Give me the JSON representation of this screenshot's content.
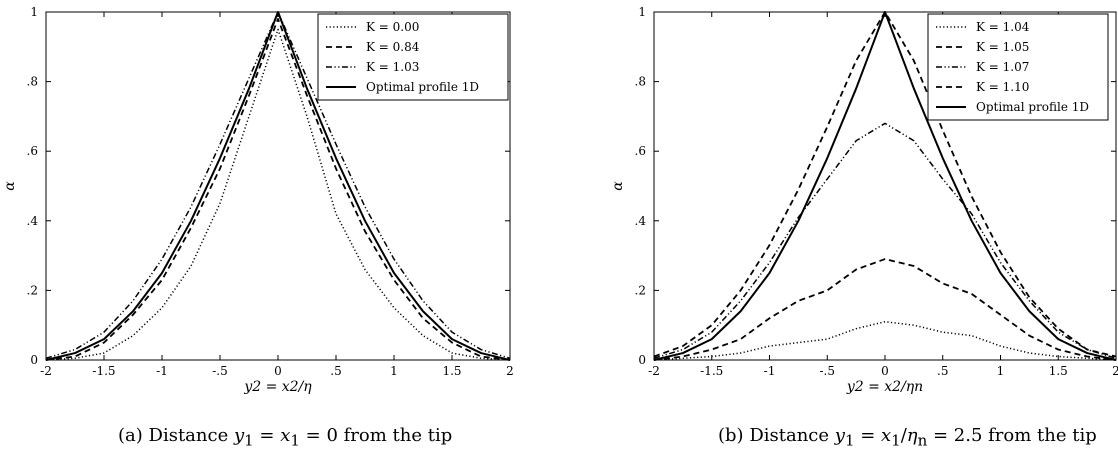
{
  "chart_data": [
    {
      "type": "line",
      "panel": "a",
      "caption_label": "(a)",
      "caption": "Distance y1 = x1 = 0 from the tip",
      "xlabel": "y2 = x2/η",
      "ylabel": "α",
      "xlim": [
        -2,
        2
      ],
      "ylim": [
        0,
        1
      ],
      "x_ticks": [
        -2,
        -1.5,
        -1,
        -0.5,
        0,
        0.5,
        1,
        1.5,
        2
      ],
      "x_tick_labels": [
        "-2",
        "-1.5",
        "-1",
        "-.5",
        "0",
        ".5",
        "1",
        "1.5",
        "2"
      ],
      "y_ticks": [
        0,
        0.2,
        0.4,
        0.6,
        0.8,
        1
      ],
      "y_tick_labels": [
        "0",
        ".2",
        ".4",
        ".6",
        ".8",
        "1"
      ],
      "legend_position": "top-right",
      "x": [
        -2,
        -1.75,
        -1.5,
        -1.25,
        -1,
        -0.75,
        -0.5,
        -0.25,
        0,
        0.25,
        0.5,
        0.75,
        1,
        1.25,
        1.5,
        1.75,
        2
      ],
      "series": [
        {
          "name": "K = 0.00",
          "style": "dotted",
          "values": [
            0,
            0.005,
            0.02,
            0.07,
            0.15,
            0.27,
            0.45,
            0.7,
            0.95,
            0.7,
            0.42,
            0.26,
            0.15,
            0.07,
            0.02,
            0.005,
            0
          ]
        },
        {
          "name": "K = 0.84",
          "style": "dashed",
          "values": [
            0,
            0.01,
            0.05,
            0.13,
            0.23,
            0.38,
            0.55,
            0.76,
            0.98,
            0.76,
            0.55,
            0.37,
            0.23,
            0.12,
            0.05,
            0.01,
            0
          ]
        },
        {
          "name": "K = 1.03",
          "style": "dashdotdot",
          "values": [
            0.005,
            0.03,
            0.08,
            0.17,
            0.29,
            0.44,
            0.62,
            0.81,
            1.0,
            0.81,
            0.62,
            0.44,
            0.29,
            0.17,
            0.08,
            0.03,
            0.005
          ]
        },
        {
          "name": "Optimal profile 1D",
          "style": "solid",
          "values": [
            0,
            0.02,
            0.06,
            0.14,
            0.25,
            0.4,
            0.58,
            0.78,
            1.0,
            0.78,
            0.58,
            0.4,
            0.25,
            0.14,
            0.06,
            0.02,
            0
          ]
        }
      ]
    },
    {
      "type": "line",
      "panel": "b",
      "caption_label": "(b)",
      "caption": "Distance y1 = x1/ηn = 2.5 from the tip",
      "xlabel": "y2 = x2/ηn",
      "ylabel": "α",
      "xlim": [
        -2,
        2
      ],
      "ylim": [
        0,
        1
      ],
      "x_ticks": [
        -2,
        -1.5,
        -1,
        -0.5,
        0,
        0.5,
        1,
        1.5,
        2
      ],
      "x_tick_labels": [
        "-2",
        "-1.5",
        "-1",
        "-.5",
        "0",
        ".5",
        "1",
        "1.5",
        "2"
      ],
      "y_ticks": [
        0,
        0.2,
        0.4,
        0.6,
        0.8,
        1
      ],
      "y_tick_labels": [
        "0",
        ".2",
        ".4",
        ".6",
        ".8",
        "1"
      ],
      "legend_position": "top-right",
      "x": [
        -2,
        -1.75,
        -1.5,
        -1.25,
        -1,
        -0.75,
        -0.5,
        -0.25,
        0,
        0.25,
        0.5,
        0.75,
        1,
        1.25,
        1.5,
        1.75,
        2
      ],
      "series": [
        {
          "name": "K = 1.04",
          "style": "dotted",
          "values": [
            0,
            0.005,
            0.01,
            0.02,
            0.04,
            0.05,
            0.06,
            0.09,
            0.11,
            0.1,
            0.08,
            0.07,
            0.04,
            0.02,
            0.01,
            0.005,
            0
          ]
        },
        {
          "name": "K = 1.05",
          "style": "dashed",
          "values": [
            0,
            0.01,
            0.03,
            0.06,
            0.12,
            0.17,
            0.2,
            0.26,
            0.29,
            0.27,
            0.22,
            0.19,
            0.13,
            0.07,
            0.03,
            0.01,
            0
          ]
        },
        {
          "name": "K = 1.07",
          "style": "dashdotdot",
          "values": [
            0.005,
            0.03,
            0.08,
            0.17,
            0.28,
            0.41,
            0.52,
            0.63,
            0.68,
            0.63,
            0.52,
            0.42,
            0.28,
            0.17,
            0.08,
            0.03,
            0.005
          ]
        },
        {
          "name": "K = 1.10",
          "style": "dashed",
          "values": [
            0.01,
            0.04,
            0.1,
            0.2,
            0.33,
            0.49,
            0.67,
            0.86,
            1.0,
            0.86,
            0.66,
            0.47,
            0.31,
            0.18,
            0.09,
            0.03,
            0.01
          ]
        },
        {
          "name": "Optimal profile 1D",
          "style": "solid",
          "values": [
            0,
            0.02,
            0.06,
            0.14,
            0.25,
            0.4,
            0.58,
            0.78,
            1.0,
            0.78,
            0.58,
            0.4,
            0.25,
            0.14,
            0.06,
            0.02,
            0
          ]
        }
      ]
    }
  ]
}
